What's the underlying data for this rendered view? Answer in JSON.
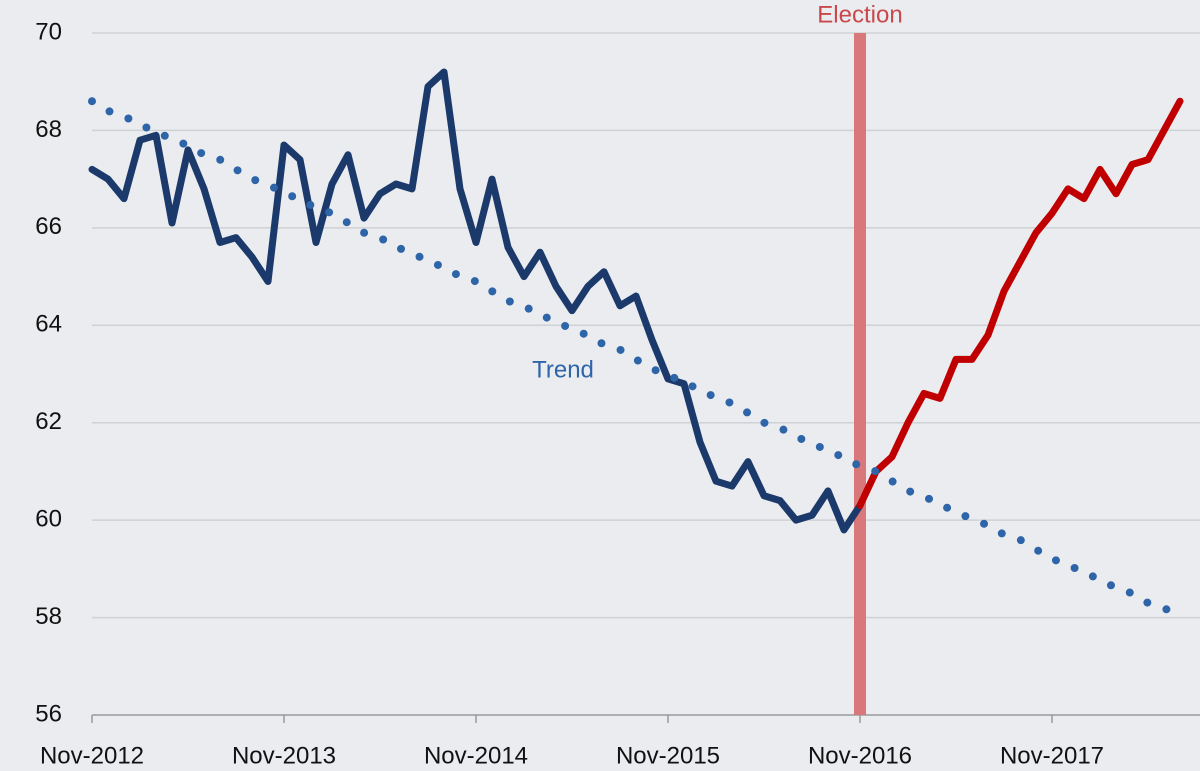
{
  "chart_data": {
    "type": "line",
    "categories": [
      "Nov-2012",
      null,
      null,
      null,
      null,
      null,
      null,
      null,
      null,
      null,
      null,
      null,
      "Nov-2013",
      null,
      null,
      null,
      null,
      null,
      null,
      null,
      null,
      null,
      null,
      null,
      "Nov-2014",
      null,
      null,
      null,
      null,
      null,
      null,
      null,
      null,
      null,
      null,
      null,
      "Nov-2015",
      null,
      null,
      null,
      null,
      null,
      null,
      null,
      null,
      null,
      null,
      null,
      "Nov-2016",
      null,
      null,
      null,
      null,
      null,
      null,
      null,
      null,
      null,
      null,
      null,
      "Nov-2017",
      null,
      null,
      null,
      null,
      null,
      null,
      null,
      null
    ],
    "series": [
      {
        "color": "#1b3a6b",
        "style": "solid",
        "values": [
          67.2,
          67.0,
          66.6,
          67.8,
          67.9,
          66.1,
          67.6,
          66.8,
          65.7,
          65.8,
          65.4,
          64.9,
          67.7,
          67.4,
          65.7,
          66.9,
          67.5,
          66.2,
          66.7,
          66.9,
          66.8,
          68.9,
          69.2,
          66.8,
          65.7,
          67.0,
          65.6,
          65.0,
          65.5,
          64.8,
          64.3,
          64.8,
          65.1,
          64.4,
          64.6,
          63.7,
          62.9,
          62.8,
          61.6,
          60.8,
          60.7,
          61.2,
          60.5,
          60.4,
          60.0,
          60.1,
          60.6,
          59.8,
          60.3,
          null,
          null,
          null,
          null,
          null,
          null,
          null,
          null,
          null,
          null,
          null,
          null,
          null,
          null,
          null,
          null,
          null,
          null,
          null,
          null
        ]
      },
      {
        "color": "#c00000",
        "style": "solid",
        "values": [
          null,
          null,
          null,
          null,
          null,
          null,
          null,
          null,
          null,
          null,
          null,
          null,
          null,
          null,
          null,
          null,
          null,
          null,
          null,
          null,
          null,
          null,
          null,
          null,
          null,
          null,
          null,
          null,
          null,
          null,
          null,
          null,
          null,
          null,
          null,
          null,
          null,
          null,
          null,
          null,
          null,
          null,
          null,
          null,
          null,
          null,
          null,
          null,
          60.3,
          61.0,
          61.3,
          62.0,
          62.6,
          62.5,
          63.3,
          63.3,
          63.8,
          64.7,
          65.3,
          65.9,
          66.3,
          66.8,
          66.6,
          67.2,
          66.7,
          67.3,
          67.4,
          68.0,
          68.6
        ]
      },
      {
        "name": "Trend",
        "color": "#2e64a8",
        "style": "dotted",
        "values": [
          68.6,
          68.4,
          68.3,
          68.1,
          68.0,
          67.8,
          67.7,
          67.5,
          67.4,
          67.2,
          67.0,
          66.9,
          66.7,
          66.6,
          66.4,
          66.3,
          66.1,
          65.9,
          65.8,
          65.6,
          65.5,
          65.3,
          65.2,
          65.0,
          64.9,
          64.7,
          64.5,
          64.4,
          64.2,
          64.1,
          63.9,
          63.8,
          63.6,
          63.5,
          63.3,
          63.1,
          63.0,
          62.8,
          62.7,
          62.5,
          62.4,
          62.2,
          62.0,
          61.9,
          61.7,
          61.6,
          61.4,
          61.3,
          61.1,
          61.0,
          60.8,
          60.6,
          60.5,
          60.3,
          60.2,
          60.0,
          59.9,
          59.7,
          59.6,
          59.4,
          59.2,
          59.1,
          58.9,
          58.8,
          58.6,
          58.5,
          58.3,
          58.2,
          58.0
        ]
      }
    ],
    "marker": {
      "label": "Election",
      "at": "Nov-2016",
      "color": "#d9787a"
    },
    "ylim": [
      56,
      70
    ],
    "yticks": [
      56,
      58,
      60,
      62,
      64,
      66,
      68,
      70
    ],
    "grid": true
  }
}
